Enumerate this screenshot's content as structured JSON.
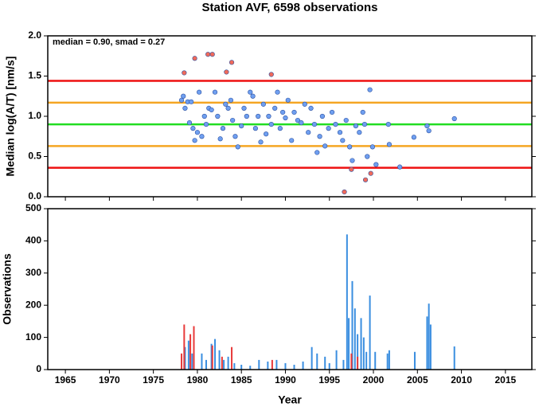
{
  "chart_data": [
    {
      "type": "scatter",
      "title": "Station AVF, 6598 observations",
      "ylabel": "Median log(A/T) [nm/s]",
      "annotation": "median = 0.90, smad = 0.27",
      "xlim": [
        1963,
        2018
      ],
      "xticks": [
        1965,
        1970,
        1975,
        1980,
        1985,
        1990,
        1995,
        2000,
        2005,
        2010,
        2015
      ],
      "ylim": [
        0,
        2
      ],
      "yticks": [
        {
          "value": 0,
          "label": "0.0"
        },
        0.5,
        {
          "value": 1,
          "label": "1.0"
        },
        1.5,
        {
          "value": 2,
          "label": "2.0"
        }
      ],
      "hlines": [
        {
          "value": 1.44,
          "color": "#ee1111"
        },
        {
          "value": 1.17,
          "color": "#f5a623"
        },
        {
          "value": 0.9,
          "color": "#22dd22"
        },
        {
          "value": 0.63,
          "color": "#f5a623"
        },
        {
          "value": 0.36,
          "color": "#ee1111"
        }
      ],
      "series": [
        {
          "color": "#6f9ff0",
          "x": [
            1978.2,
            1978.4,
            1978.6,
            1978.9,
            1979.1,
            1979.3,
            1979.5,
            1979.7,
            1980.0,
            1980.2,
            1980.5,
            1980.8,
            1981.0,
            1981.3,
            1981.6,
            1982.0,
            1982.3,
            1982.6,
            1982.9,
            1983.2,
            1983.5,
            1983.8,
            1984.0,
            1984.3,
            1984.6,
            1985.0,
            1985.3,
            1985.6,
            1986.0,
            1986.3,
            1986.6,
            1986.9,
            1987.2,
            1987.5,
            1987.8,
            1988.1,
            1988.4,
            1988.8,
            1989.1,
            1989.4,
            1989.7,
            1990.0,
            1990.3,
            1990.7,
            1991.0,
            1991.4,
            1991.8,
            1992.2,
            1992.6,
            1992.9,
            1993.3,
            1993.6,
            1993.9,
            1994.2,
            1994.5,
            1994.9,
            1995.3,
            1995.7,
            1996.2,
            1996.5,
            1996.9,
            1997.3,
            1997.6,
            1998.0,
            1998.4,
            1998.8,
            1999.0,
            1999.3,
            1999.6,
            1999.9,
            2000.3,
            2001.7,
            2001.8,
            2003.0,
            2004.6,
            2006.1,
            2006.3,
            2009.2
          ],
          "values": [
            1.2,
            1.25,
            1.1,
            1.18,
            0.92,
            1.18,
            0.85,
            0.7,
            0.8,
            1.3,
            0.75,
            1.0,
            0.9,
            1.1,
            1.08,
            1.3,
            1.0,
            0.72,
            0.85,
            1.15,
            1.1,
            1.2,
            0.95,
            0.75,
            0.62,
            0.88,
            1.1,
            1.0,
            1.3,
            1.25,
            0.85,
            1.0,
            0.68,
            1.15,
            0.78,
            1.0,
            0.9,
            1.1,
            1.3,
            0.85,
            1.05,
            0.98,
            1.2,
            0.7,
            1.05,
            0.95,
            0.92,
            1.15,
            0.8,
            1.1,
            0.9,
            0.55,
            0.75,
            1.0,
            0.63,
            0.85,
            1.05,
            0.9,
            0.8,
            0.7,
            0.95,
            0.62,
            0.45,
            0.88,
            0.8,
            1.05,
            0.9,
            0.5,
            1.33,
            0.62,
            0.4,
            0.9,
            0.65,
            0.37,
            0.74,
            0.88,
            0.82,
            0.97
          ]
        },
        {
          "color": "#f06a5a",
          "x": [
            1978.5,
            1979.7,
            1981.2,
            1981.7,
            1983.3,
            1983.9,
            1988.4,
            1996.7,
            1997.5,
            1999.1,
            1999.7
          ],
          "values": [
            1.54,
            1.72,
            1.77,
            1.77,
            1.55,
            1.67,
            1.52,
            0.06,
            0.34,
            0.21,
            0.29
          ]
        }
      ]
    },
    {
      "type": "bar",
      "xlabel": "Year",
      "ylabel": "Observations",
      "xlim": [
        1963,
        2018
      ],
      "xticks": [
        1965,
        1970,
        1975,
        1980,
        1985,
        1990,
        1995,
        2000,
        2005,
        2010,
        2015
      ],
      "ylim": [
        0,
        500
      ],
      "yticks": [
        0,
        100,
        200,
        300,
        400,
        500
      ],
      "series": [
        {
          "color": "#3a8ee0",
          "x": [
            1978.2,
            1978.6,
            1979.0,
            1979.4,
            1980.5,
            1981.0,
            1981.6,
            1982.0,
            1982.5,
            1983.0,
            1983.5,
            1984.2,
            1985,
            1986,
            1987,
            1988,
            1989,
            1990,
            1991,
            1992,
            1993,
            1993.6,
            1994.5,
            1995,
            1995.8,
            1996.6,
            1997.0,
            1997.2,
            1997.6,
            1997.9,
            1998.2,
            1998.6,
            1998.9,
            1999.2,
            1999.6,
            2000.2,
            2001.6,
            2001.8,
            2004.7,
            2006.1,
            2006.3,
            2006.5,
            2009.2
          ],
          "values": [
            40,
            70,
            90,
            50,
            50,
            30,
            80,
            95,
            60,
            30,
            40,
            20,
            15,
            12,
            30,
            25,
            30,
            20,
            15,
            25,
            70,
            50,
            40,
            20,
            60,
            30,
            420,
            160,
            275,
            190,
            110,
            160,
            100,
            55,
            230,
            55,
            50,
            60,
            55,
            165,
            205,
            140,
            72
          ]
        },
        {
          "color": "#e83a3a",
          "x": [
            1978.2,
            1978.5,
            1979.2,
            1979.6,
            1981.7,
            1982.8,
            1983.9,
            1988.5,
            1997.5,
            1998.2
          ],
          "values": [
            50,
            140,
            110,
            135,
            75,
            40,
            70,
            30,
            50,
            40
          ]
        }
      ]
    }
  ]
}
